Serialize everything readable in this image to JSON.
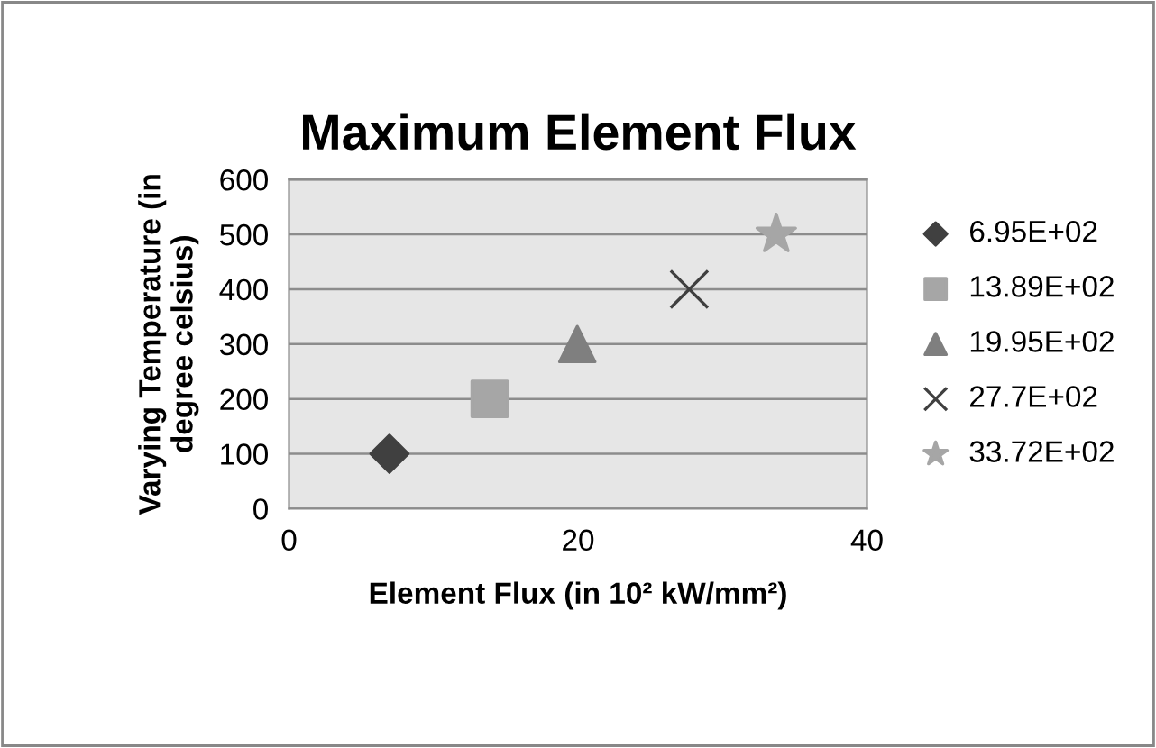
{
  "chart_data": {
    "type": "scatter",
    "title": "Maximum Element Flux",
    "xlabel": "Element Flux (in 10² kW/mm²)",
    "ylabel": "Varying Temperature (in\ndegree celsius)",
    "xlim": [
      0,
      40
    ],
    "xticks": [
      0,
      20,
      40
    ],
    "ylim": [
      0,
      600
    ],
    "yticks": [
      0,
      100,
      200,
      300,
      400,
      500,
      600
    ],
    "grid": "y",
    "legend": "right",
    "series": [
      {
        "name": "6.95E+02",
        "color": "#404040",
        "marker": "diamond",
        "x": [
          6.95
        ],
        "values": [
          100
        ]
      },
      {
        "name": "13.89E+02",
        "color": "#a6a6a6",
        "marker": "square",
        "x": [
          13.89
        ],
        "values": [
          200
        ]
      },
      {
        "name": "19.95E+02",
        "color": "#7f7f7f",
        "marker": "triangle",
        "x": [
          19.95
        ],
        "values": [
          300
        ]
      },
      {
        "name": "27.7E+02",
        "color": "#404040",
        "marker": "cross",
        "x": [
          27.7
        ],
        "values": [
          400
        ]
      },
      {
        "name": "33.72E+02",
        "color": "#a6a6a6",
        "marker": "star",
        "x": [
          33.72
        ],
        "values": [
          500
        ]
      }
    ]
  }
}
